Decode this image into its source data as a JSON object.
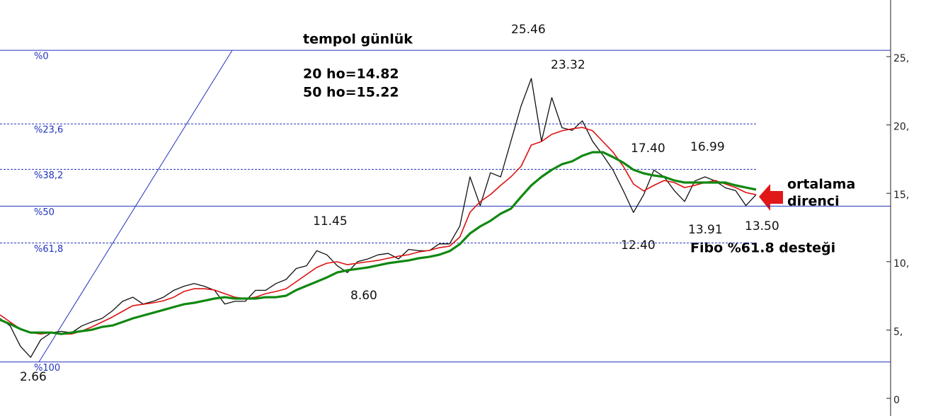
{
  "chart_data": {
    "type": "line",
    "annotations": {
      "title": "tempol günlük",
      "ma20": "20 ho=14.82",
      "ma50": "50 ho=15.22",
      "resistance": [
        "ortalama",
        "direnci"
      ],
      "support": "Fibo %61.8 desteği",
      "prices": [
        "25.46",
        "23.32",
        "17.40",
        "16.99",
        "11.45",
        "8.60",
        "12.40",
        "13.91",
        "13.50",
        "2.66"
      ]
    },
    "ylim": [
      -1.29,
      29.14
    ],
    "yticks": [
      {
        "value": 25,
        "label": "25,"
      },
      {
        "value": 20,
        "label": "20,"
      },
      {
        "value": 15,
        "label": "15,"
      },
      {
        "value": 10,
        "label": "10,"
      },
      {
        "value": 5,
        "label": "5,"
      },
      0
    ],
    "fibonacci": {
      "color": "#2233bb",
      "levels": [
        {
          "label": "%0",
          "value": 25.46,
          "style": "solid"
        },
        {
          "label": "%23,6",
          "value": 20.08,
          "style": "dashed"
        },
        {
          "label": "%38,2",
          "value": 16.75,
          "style": "dashed"
        },
        {
          "label": "%50",
          "value": 14.06,
          "style": "solid"
        },
        {
          "label": "%61,8",
          "value": 11.37,
          "style": "dashed"
        },
        {
          "label": "%100",
          "value": 2.66,
          "style": "solid"
        }
      ]
    },
    "series": [
      {
        "color": "#111111",
        "width": 1.3,
        "values": [
          5.85,
          5.3,
          3.8,
          3.0,
          4.3,
          4.8,
          4.9,
          4.8,
          5.3,
          5.6,
          5.85,
          6.4,
          7.1,
          7.4,
          6.9,
          7.1,
          7.4,
          7.9,
          8.2,
          8.4,
          8.2,
          7.9,
          6.9,
          7.1,
          7.1,
          7.9,
          7.9,
          8.4,
          8.7,
          9.5,
          9.7,
          10.8,
          10.5,
          9.7,
          9.2,
          10.0,
          10.2,
          10.5,
          10.6,
          10.2,
          10.9,
          10.8,
          10.8,
          11.3,
          11.3,
          12.6,
          16.2,
          14.1,
          16.5,
          16.2,
          18.8,
          21.4,
          23.4,
          18.8,
          22.0,
          19.8,
          19.6,
          20.3,
          18.8,
          17.8,
          16.7,
          15.2,
          13.6,
          14.9,
          16.7,
          16.2,
          15.2,
          14.4,
          15.9,
          16.2,
          15.9,
          15.4,
          15.2,
          14.1,
          14.9
        ]
      },
      {
        "color": "#dd1111",
        "width": 1.6,
        "values": [
          6.11,
          5.59,
          5.07,
          4.81,
          4.71,
          4.81,
          4.71,
          4.71,
          4.92,
          5.23,
          5.59,
          5.95,
          6.37,
          6.78,
          6.88,
          6.99,
          7.14,
          7.4,
          7.82,
          8.02,
          8.02,
          7.92,
          7.66,
          7.4,
          7.3,
          7.4,
          7.66,
          7.82,
          8.02,
          8.54,
          9.06,
          9.58,
          9.89,
          9.99,
          9.78,
          9.89,
          9.99,
          10.09,
          10.25,
          10.4,
          10.51,
          10.71,
          10.82,
          11.02,
          11.13,
          11.8,
          13.61,
          14.39,
          14.91,
          15.58,
          16.2,
          16.98,
          18.53,
          18.79,
          19.31,
          19.57,
          19.72,
          19.82,
          19.57,
          18.79,
          18.01,
          16.98,
          15.68,
          15.17,
          15.58,
          15.94,
          15.79,
          15.42,
          15.58,
          15.79,
          15.94,
          15.68,
          15.42,
          15.06,
          14.9
        ]
      },
      {
        "color": "#118811",
        "width": 3.2,
        "values": [
          5.75,
          5.43,
          5.07,
          4.81,
          4.81,
          4.81,
          4.71,
          4.81,
          4.92,
          5.02,
          5.23,
          5.33,
          5.59,
          5.85,
          6.06,
          6.26,
          6.47,
          6.68,
          6.88,
          6.99,
          7.14,
          7.3,
          7.4,
          7.3,
          7.3,
          7.3,
          7.4,
          7.4,
          7.51,
          7.92,
          8.23,
          8.54,
          8.85,
          9.21,
          9.37,
          9.47,
          9.58,
          9.73,
          9.89,
          9.99,
          10.09,
          10.25,
          10.35,
          10.51,
          10.77,
          11.28,
          12.06,
          12.58,
          12.99,
          13.51,
          13.87,
          14.75,
          15.58,
          16.2,
          16.72,
          17.13,
          17.34,
          17.75,
          18.01,
          18.01,
          17.65,
          17.24,
          16.72,
          16.46,
          16.3,
          16.2,
          15.94,
          15.79,
          15.79,
          15.79,
          15.79,
          15.79,
          15.58,
          15.42,
          15.27
        ]
      }
    ]
  }
}
